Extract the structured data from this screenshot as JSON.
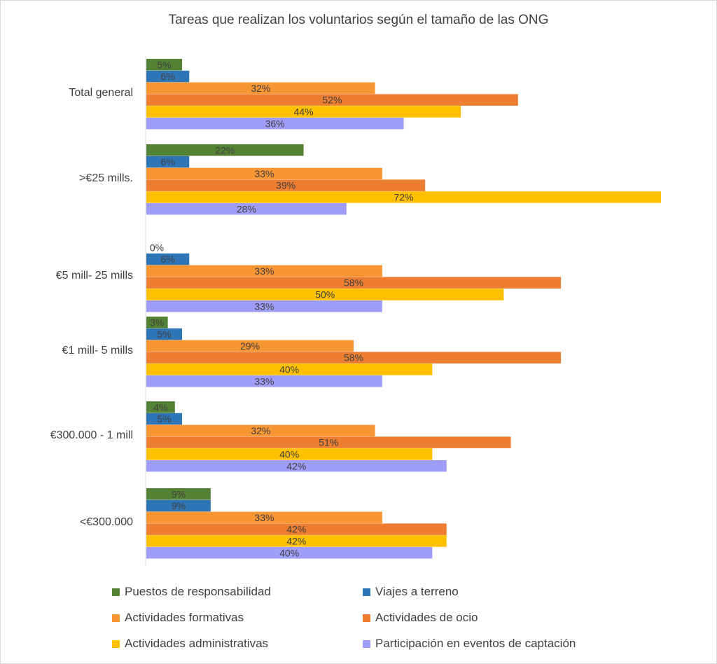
{
  "chart_data": {
    "type": "bar",
    "orientation": "horizontal",
    "title": "Tareas que realizan los voluntarios según el tamaño de las ONG",
    "categories": [
      "Total general",
      ">€25 mills.",
      "€5 mill- 25 mills",
      "€1 mill- 5 mills",
      "€300.000 - 1 mill",
      "<€300.000"
    ],
    "series": [
      {
        "name": "Puestos de responsabilidad",
        "color": "#548235",
        "values": [
          5,
          22,
          0,
          3,
          4,
          9
        ]
      },
      {
        "name": "Viajes a terreno",
        "color": "#2e75b6",
        "values": [
          6,
          6,
          6,
          5,
          5,
          9
        ]
      },
      {
        "name": "Actividades formativas",
        "color": "#f79633",
        "values": [
          32,
          33,
          33,
          29,
          32,
          33
        ]
      },
      {
        "name": "Actividades de ocio",
        "color": "#ed7d31",
        "values": [
          52,
          39,
          58,
          58,
          51,
          42
        ]
      },
      {
        "name": "Actividades administrativas",
        "color": "#ffc000",
        "values": [
          44,
          72,
          50,
          40,
          40,
          42
        ]
      },
      {
        "name": "Participación en eventos de captación",
        "color": "#9e9df7",
        "values": [
          36,
          28,
          33,
          33,
          42,
          40
        ]
      }
    ],
    "value_labels": [
      [
        "5%",
        "22%",
        "0%",
        "3%",
        "4%",
        "9%"
      ],
      [
        "6%",
        "6%",
        "6%",
        "5%",
        "5%",
        "9%"
      ],
      [
        "32%",
        "33%",
        "33%",
        "29%",
        "32%",
        "33%"
      ],
      [
        "52%",
        "39%",
        "58%",
        "58%",
        "51%",
        "42%"
      ],
      [
        "44%",
        "72%",
        "50%",
        "40%",
        "40%",
        "42%"
      ],
      [
        "36%",
        "28%",
        "33%",
        "33%",
        "42%",
        "40%"
      ]
    ],
    "xlim": [
      0,
      72
    ],
    "xlabel": "",
    "ylabel": "",
    "grid": false,
    "legend_position": "bottom"
  }
}
